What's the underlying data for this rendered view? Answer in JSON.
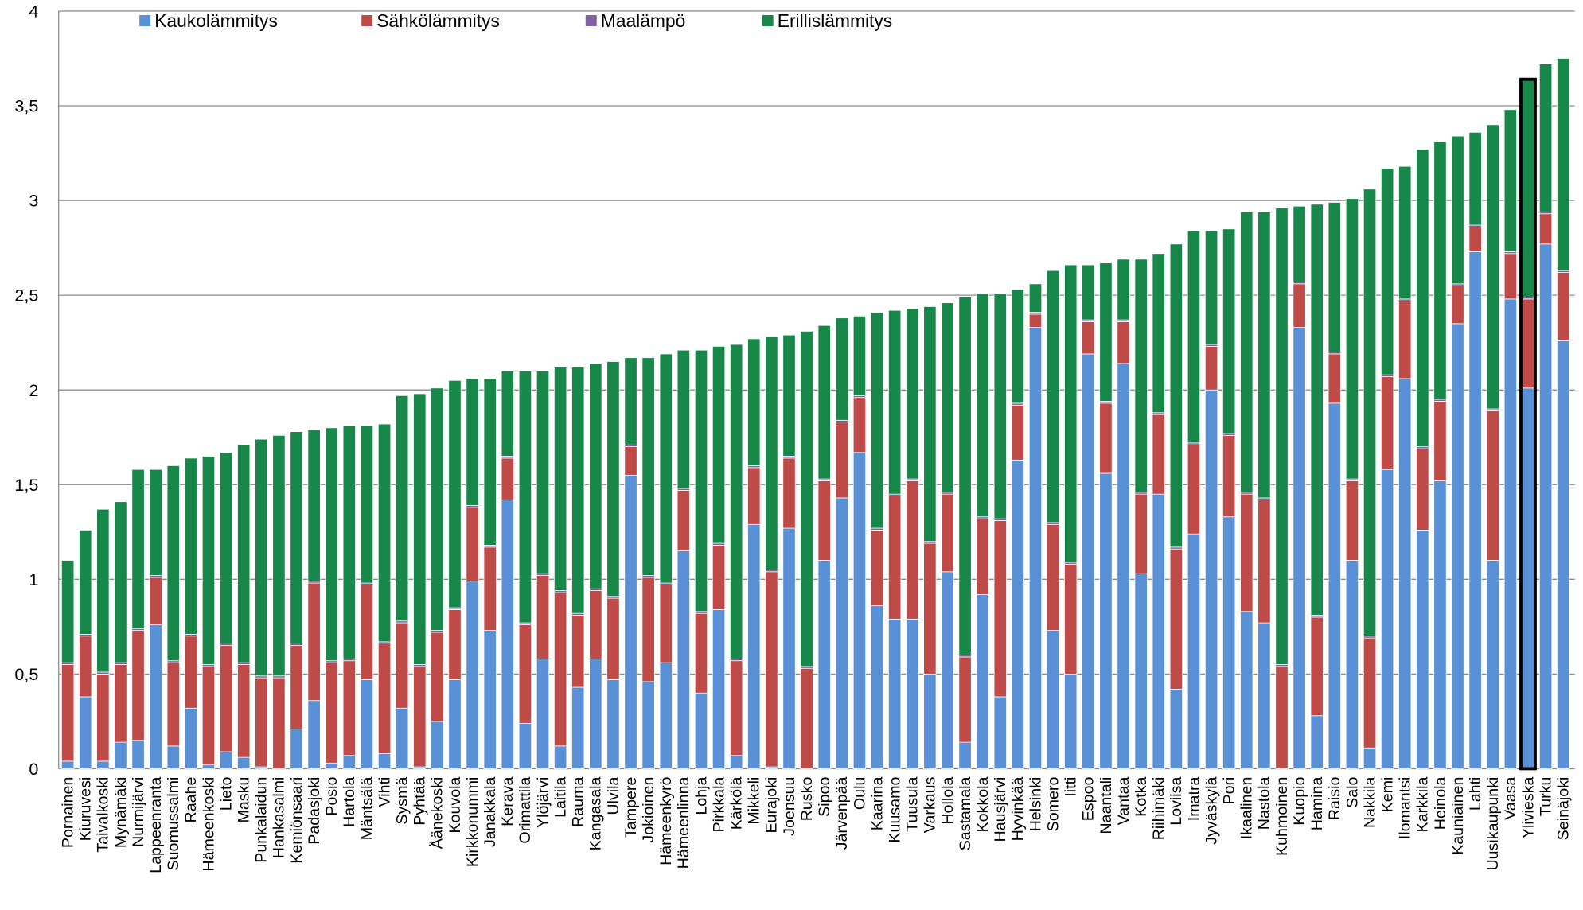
{
  "chart_data": {
    "type": "stacked-bar",
    "categories": [
      "Pornainen",
      "Kiuruvesi",
      "Taivalkoski",
      "Mynämäki",
      "Nurmijärvi",
      "Lappeenranta",
      "Suomussalmi",
      "Raahe",
      "Hämeenkoski",
      "Lieto",
      "Masku",
      "Punkalaidun",
      "Hankasalmi",
      "Kemiönsaari",
      "Padasjoki",
      "Posio",
      "Hartola",
      "Mäntsälä",
      "Vihti",
      "Sysmä",
      "Pyhtää",
      "Äänekoski",
      "Kouvola",
      "Kirkkonummi",
      "Janakkala",
      "Kerava",
      "Orimattila",
      "Ylöjärvi",
      "Laitila",
      "Rauma",
      "Kangasala",
      "Ulvila",
      "Tampere",
      "Jokioinen",
      "Hämeenkyrö",
      "Hämeenlinna",
      "Lohja",
      "Pirkkala",
      "Kärkölä",
      "Mikkeli",
      "Eurajoki",
      "Joensuu",
      "Rusko",
      "Sipoo",
      "Järvenpää",
      "Oulu",
      "Kaarina",
      "Kuusamo",
      "Tuusula",
      "Varkaus",
      "Hollola",
      "Sastamala",
      "Kokkola",
      "Hausjärvi",
      "Hyvinkää",
      "Helsinki",
      "Somero",
      "Iitti",
      "Espoo",
      "Naantali",
      "Vantaa",
      "Kotka",
      "Riihimäki",
      "Loviisa",
      "Imatra",
      "Jyväskylä",
      "Pori",
      "Ikaalinen",
      "Nastola",
      "Kuhmoinen",
      "Kuopio",
      "Hamina",
      "Raisio",
      "Salo",
      "Nakkila",
      "Kemi",
      "Ilomantsi",
      "Karkkila",
      "Heinola",
      "Kauniainen",
      "Lahti",
      "Uusikaupunki",
      "Vaasa",
      "Ylivieska",
      "Turku",
      "Seinäjoki"
    ],
    "series": [
      {
        "name": "Kaukolämmitys",
        "color": "#5a91d6",
        "values": [
          0.04,
          0.38,
          0.04,
          0.14,
          0.15,
          0.76,
          0.12,
          0.32,
          0.02,
          0.09,
          0.06,
          0.01,
          0,
          0.21,
          0.36,
          0.03,
          0.07,
          0.47,
          0.08,
          0.32,
          0.01,
          0.25,
          0.47,
          0.99,
          0.73,
          1.42,
          0.24,
          0.58,
          0.12,
          0.43,
          0.58,
          0.47,
          1.55,
          0.46,
          0.56,
          1.15,
          0.4,
          0.84,
          0.07,
          1.29,
          0.01,
          1.27,
          0,
          1.1,
          1.43,
          1.67,
          0.86,
          0.79,
          0.79,
          0.5,
          1.04,
          0.14,
          0.92,
          0.38,
          1.63,
          2.33,
          0.73,
          0.5,
          2.19,
          1.56,
          2.14,
          1.03,
          1.45,
          0.42,
          1.24,
          2.0,
          1.33,
          0.83,
          0.77,
          0,
          2.33,
          0.28,
          1.93,
          1.1,
          0.11,
          1.58,
          2.06,
          1.26,
          1.52,
          2.35,
          2.73,
          1.1,
          2.48,
          2.01,
          2.77,
          2.26
        ]
      },
      {
        "name": "Sähkölämmitys",
        "color": "#be4b48",
        "values": [
          0.51,
          0.32,
          0.46,
          0.41,
          0.58,
          0.25,
          0.44,
          0.38,
          0.52,
          0.56,
          0.49,
          0.47,
          0.48,
          0.44,
          0.62,
          0.53,
          0.5,
          0.5,
          0.58,
          0.45,
          0.53,
          0.47,
          0.37,
          0.39,
          0.44,
          0.22,
          0.52,
          0.44,
          0.81,
          0.38,
          0.36,
          0.43,
          0.15,
          0.55,
          0.41,
          0.32,
          0.42,
          0.34,
          0.5,
          0.3,
          1.03,
          0.37,
          0.53,
          0.42,
          0.4,
          0.29,
          0.4,
          0.65,
          0.73,
          0.69,
          0.41,
          0.45,
          0.4,
          0.93,
          0.29,
          0.07,
          0.56,
          0.58,
          0.17,
          0.37,
          0.22,
          0.42,
          0.42,
          0.74,
          0.47,
          0.23,
          0.43,
          0.62,
          0.65,
          0.54,
          0.23,
          0.52,
          0.26,
          0.42,
          0.58,
          0.49,
          0.41,
          0.43,
          0.42,
          0.2,
          0.13,
          0.79,
          0.24,
          0.47,
          0.16,
          0.36
        ]
      },
      {
        "name": "Maalämpö",
        "color": "#7e62a1",
        "values": [
          0.01,
          0.01,
          0.01,
          0.01,
          0.01,
          0.01,
          0.01,
          0.01,
          0.01,
          0.01,
          0.01,
          0.01,
          0.01,
          0.01,
          0.01,
          0.01,
          0.01,
          0.01,
          0.01,
          0.01,
          0.01,
          0.01,
          0.01,
          0.01,
          0.01,
          0.01,
          0.01,
          0.01,
          0.01,
          0.01,
          0.01,
          0.01,
          0.01,
          0.01,
          0.01,
          0.01,
          0.01,
          0.01,
          0.01,
          0.01,
          0.01,
          0.01,
          0.01,
          0.01,
          0.01,
          0.01,
          0.01,
          0.01,
          0.01,
          0.01,
          0.01,
          0.01,
          0.01,
          0.01,
          0.01,
          0.01,
          0.01,
          0.01,
          0.01,
          0.01,
          0.01,
          0.01,
          0.01,
          0.01,
          0.01,
          0.01,
          0.01,
          0.01,
          0.01,
          0.01,
          0.01,
          0.01,
          0.01,
          0.01,
          0.01,
          0.01,
          0.01,
          0.01,
          0.01,
          0.01,
          0.01,
          0.01,
          0.01,
          0.01,
          0.01,
          0.01
        ]
      },
      {
        "name": "Erillislämmitys",
        "color": "#18884a",
        "values": [
          0.54,
          0.55,
          0.86,
          0.85,
          0.84,
          0.56,
          1.03,
          0.93,
          1.1,
          1.01,
          1.15,
          1.25,
          1.27,
          1.12,
          0.8,
          1.23,
          1.23,
          0.83,
          1.15,
          1.19,
          1.43,
          1.28,
          1.2,
          0.67,
          0.88,
          0.45,
          1.33,
          1.07,
          1.18,
          1.3,
          1.19,
          1.24,
          0.46,
          1.15,
          1.21,
          0.73,
          1.38,
          1.04,
          1.66,
          0.67,
          1.23,
          0.64,
          1.77,
          0.81,
          0.54,
          0.42,
          1.14,
          0.97,
          0.9,
          1.24,
          1.0,
          1.89,
          1.18,
          1.19,
          0.6,
          0.15,
          1.33,
          1.57,
          0.29,
          0.73,
          0.32,
          1.23,
          0.84,
          1.6,
          1.12,
          0.6,
          1.08,
          1.48,
          1.51,
          2.41,
          0.4,
          2.17,
          0.79,
          1.48,
          2.36,
          1.09,
          0.7,
          1.57,
          1.36,
          0.78,
          0.49,
          1.5,
          0.75,
          1.15,
          0.78,
          1.12
        ]
      }
    ],
    "ylim": [
      0,
      4
    ],
    "yticks": [
      0,
      {
        "value": 0.5,
        "label": "0,5"
      },
      1,
      {
        "value": 1.5,
        "label": "1,5"
      },
      2,
      {
        "value": 2.5,
        "label": "2,5"
      },
      3,
      {
        "value": 3.5,
        "label": "3,5"
      },
      4
    ],
    "grid": true,
    "highlight": "Ylivieska"
  }
}
